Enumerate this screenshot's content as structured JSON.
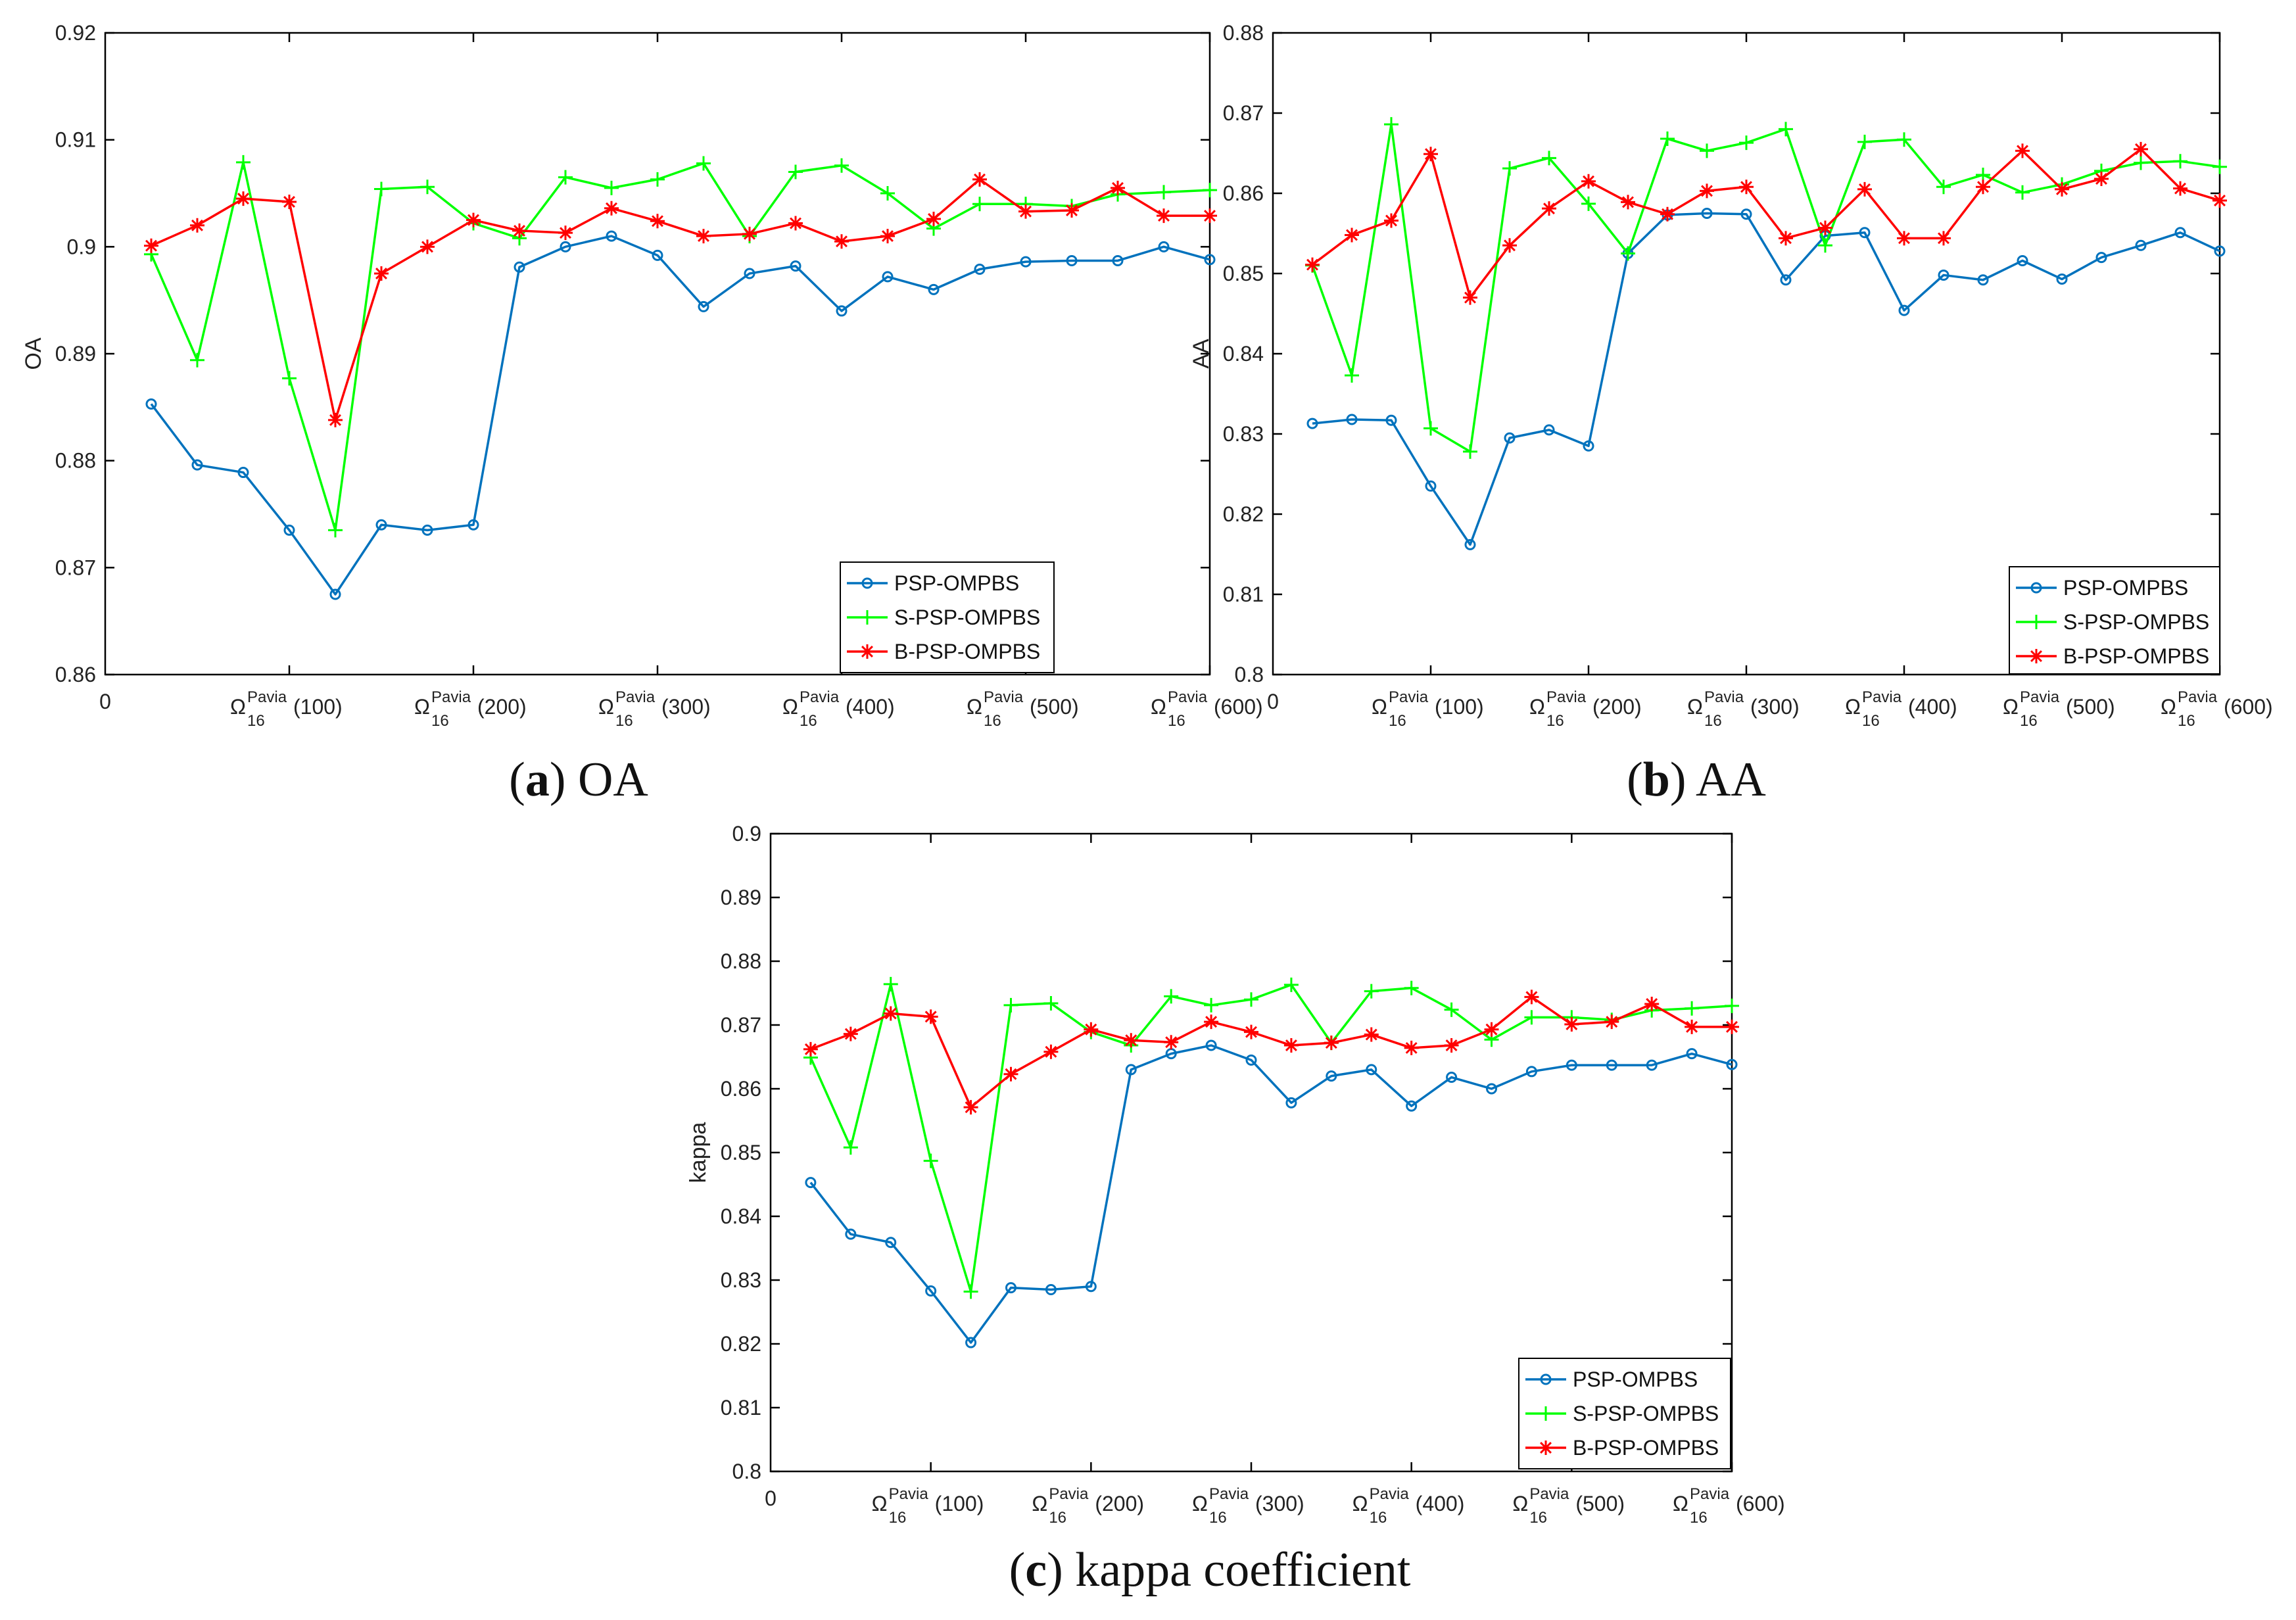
{
  "chart_data": [
    {
      "type": "line",
      "id": "oa",
      "caption_letter": "a",
      "caption_text": "OA",
      "ylabel": "OA",
      "xlim": [
        0,
        600
      ],
      "ylim": [
        0.86,
        0.92
      ],
      "yticks": [
        "0.86",
        "0.87",
        "0.88",
        "0.89",
        "0.9",
        "0.91",
        "0.92"
      ],
      "ytick_values": [
        0.86,
        0.87,
        0.88,
        0.89,
        0.9,
        0.91,
        0.92
      ],
      "x_zero_label": "0",
      "xticks": [
        {
          "value": 100,
          "base": "Ω",
          "sub": "16",
          "sup": "Pavia",
          "arg": "(100)"
        },
        {
          "value": 200,
          "base": "Ω",
          "sub": "16",
          "sup": "Pavia",
          "arg": "(200)"
        },
        {
          "value": 300,
          "base": "Ω",
          "sub": "16",
          "sup": "Pavia",
          "arg": "(300)"
        },
        {
          "value": 400,
          "base": "Ω",
          "sub": "16",
          "sup": "Pavia",
          "arg": "(400)"
        },
        {
          "value": 500,
          "base": "Ω",
          "sub": "16",
          "sup": "Pavia",
          "arg": "(500)"
        },
        {
          "value": 600,
          "base": "Ω",
          "sub": "16",
          "sup": "Pavia",
          "arg": "(600)"
        }
      ],
      "x": [
        25,
        50,
        75,
        100,
        125,
        150,
        175,
        200,
        225,
        250,
        275,
        300,
        325,
        350,
        375,
        400,
        425,
        450,
        475,
        500,
        525,
        550,
        575,
        600
      ],
      "series": [
        {
          "name": "PSP-OMPBS",
          "color": "#0072BD",
          "marker": "circle",
          "values": [
            0.8853,
            0.8796,
            0.8789,
            0.8735,
            0.8675,
            0.874,
            0.8735,
            0.874,
            0.8981,
            0.9,
            0.901,
            0.8992,
            0.8944,
            0.8975,
            0.8982,
            0.894,
            0.8972,
            0.896,
            0.8979,
            0.8986,
            0.8987,
            0.8987,
            0.9,
            0.8988
          ]
        },
        {
          "name": "S-PSP-OMPBS",
          "color": "#00FF00",
          "marker": "plus",
          "values": [
            0.8993,
            0.8894,
            0.9079,
            0.8877,
            0.8735,
            0.9054,
            0.9056,
            0.9022,
            0.9008,
            0.9065,
            0.9055,
            0.9063,
            0.9078,
            0.901,
            0.907,
            0.9076,
            0.905,
            0.9017,
            0.904,
            0.904,
            0.9038,
            0.9049,
            0.9051,
            0.9053
          ]
        },
        {
          "name": "B-PSP-OMPBS",
          "color": "#FF0000",
          "marker": "star",
          "values": [
            0.9001,
            0.902,
            0.9045,
            0.9042,
            0.8838,
            0.8975,
            0.9,
            0.9025,
            0.9015,
            0.9013,
            0.9036,
            0.9024,
            0.901,
            0.9012,
            0.9022,
            0.9005,
            0.901,
            0.9026,
            0.9063,
            0.9033,
            0.9034,
            0.9055,
            0.9029,
            0.9029
          ]
        }
      ]
    },
    {
      "type": "line",
      "id": "aa",
      "caption_letter": "b",
      "caption_text": "AA",
      "ylabel": "AA",
      "xlim": [
        0,
        600
      ],
      "ylim": [
        0.8,
        0.88
      ],
      "yticks": [
        "0.8",
        "0.81",
        "0.82",
        "0.83",
        "0.84",
        "0.85",
        "0.86",
        "0.87",
        "0.88"
      ],
      "ytick_values": [
        0.8,
        0.81,
        0.82,
        0.83,
        0.84,
        0.85,
        0.86,
        0.87,
        0.88
      ],
      "x_zero_label": "0",
      "xticks": [
        {
          "value": 100,
          "base": "Ω",
          "sub": "16",
          "sup": "Pavia",
          "arg": "(100)"
        },
        {
          "value": 200,
          "base": "Ω",
          "sub": "16",
          "sup": "Pavia",
          "arg": "(200)"
        },
        {
          "value": 300,
          "base": "Ω",
          "sub": "16",
          "sup": "Pavia",
          "arg": "(300)"
        },
        {
          "value": 400,
          "base": "Ω",
          "sub": "16",
          "sup": "Pavia",
          "arg": "(400)"
        },
        {
          "value": 500,
          "base": "Ω",
          "sub": "16",
          "sup": "Pavia",
          "arg": "(500)"
        },
        {
          "value": 600,
          "base": "Ω",
          "sub": "16",
          "sup": "Pavia",
          "arg": "(600)"
        }
      ],
      "x": [
        25,
        50,
        75,
        100,
        125,
        150,
        175,
        200,
        225,
        250,
        275,
        300,
        325,
        350,
        375,
        400,
        425,
        450,
        475,
        500,
        525,
        550,
        575,
        600
      ],
      "series": [
        {
          "name": "PSP-OMPBS",
          "color": "#0072BD",
          "marker": "circle",
          "values": [
            0.8313,
            0.8318,
            0.8317,
            0.8235,
            0.8162,
            0.8295,
            0.8305,
            0.8285,
            0.8525,
            0.8573,
            0.8575,
            0.8574,
            0.8492,
            0.8547,
            0.8551,
            0.8454,
            0.8498,
            0.8492,
            0.8516,
            0.8493,
            0.852,
            0.8535,
            0.8551,
            0.8528
          ]
        },
        {
          "name": "S-PSP-OMPBS",
          "color": "#00FF00",
          "marker": "plus",
          "values": [
            0.851,
            0.8373,
            0.8686,
            0.8307,
            0.8278,
            0.8631,
            0.8644,
            0.8587,
            0.8525,
            0.8668,
            0.8653,
            0.8663,
            0.868,
            0.8535,
            0.8664,
            0.8667,
            0.8608,
            0.8623,
            0.8601,
            0.8611,
            0.8628,
            0.8638,
            0.864,
            0.8633
          ]
        },
        {
          "name": "B-PSP-OMPBS",
          "color": "#FF0000",
          "marker": "star",
          "values": [
            0.8511,
            0.8548,
            0.8566,
            0.8649,
            0.847,
            0.8535,
            0.8581,
            0.8615,
            0.8589,
            0.8574,
            0.8603,
            0.8608,
            0.8544,
            0.8557,
            0.8605,
            0.8544,
            0.8544,
            0.8608,
            0.8653,
            0.8605,
            0.8618,
            0.8655,
            0.8606,
            0.8591
          ]
        }
      ]
    },
    {
      "type": "line",
      "id": "kappa",
      "caption_letter": "c",
      "caption_text": "kappa coefficient",
      "ylabel": "kappa",
      "xlim": [
        0,
        600
      ],
      "ylim": [
        0.8,
        0.9
      ],
      "yticks": [
        "0.8",
        "0.81",
        "0.82",
        "0.83",
        "0.84",
        "0.85",
        "0.86",
        "0.87",
        "0.88",
        "0.89",
        "0.9"
      ],
      "ytick_values": [
        0.8,
        0.81,
        0.82,
        0.83,
        0.84,
        0.85,
        0.86,
        0.87,
        0.88,
        0.89,
        0.9
      ],
      "x_zero_label": "0",
      "xticks": [
        {
          "value": 100,
          "base": "Ω",
          "sub": "16",
          "sup": "Pavia",
          "arg": "(100)"
        },
        {
          "value": 200,
          "base": "Ω",
          "sub": "16",
          "sup": "Pavia",
          "arg": "(200)"
        },
        {
          "value": 300,
          "base": "Ω",
          "sub": "16",
          "sup": "Pavia",
          "arg": "(300)"
        },
        {
          "value": 400,
          "base": "Ω",
          "sub": "16",
          "sup": "Pavia",
          "arg": "(400)"
        },
        {
          "value": 500,
          "base": "Ω",
          "sub": "16",
          "sup": "Pavia",
          "arg": "(500)"
        },
        {
          "value": 600,
          "base": "Ω",
          "sub": "16",
          "sup": "Pavia",
          "arg": "(600)"
        }
      ],
      "x": [
        25,
        50,
        75,
        100,
        125,
        150,
        175,
        200,
        225,
        250,
        275,
        300,
        325,
        350,
        375,
        400,
        425,
        450,
        475,
        500,
        525,
        550,
        575,
        600
      ],
      "series": [
        {
          "name": "PSP-OMPBS",
          "color": "#0072BD",
          "marker": "circle",
          "values": [
            0.8453,
            0.8372,
            0.8359,
            0.8283,
            0.8202,
            0.8288,
            0.8285,
            0.829,
            0.863,
            0.8655,
            0.8668,
            0.8645,
            0.8578,
            0.862,
            0.863,
            0.8573,
            0.8618,
            0.86,
            0.8627,
            0.8637,
            0.8637,
            0.8637,
            0.8655,
            0.8638
          ]
        },
        {
          "name": "S-PSP-OMPBS",
          "color": "#00FF00",
          "marker": "plus",
          "values": [
            0.8649,
            0.8508,
            0.8764,
            0.8487,
            0.8282,
            0.8731,
            0.8734,
            0.8689,
            0.8668,
            0.8745,
            0.8731,
            0.874,
            0.8763,
            0.8672,
            0.8753,
            0.8758,
            0.8724,
            0.8677,
            0.8712,
            0.8712,
            0.8708,
            0.8723,
            0.8726,
            0.873
          ]
        },
        {
          "name": "B-PSP-OMPBS",
          "color": "#FF0000",
          "marker": "star",
          "values": [
            0.8662,
            0.8686,
            0.8718,
            0.8713,
            0.8571,
            0.8623,
            0.8658,
            0.8693,
            0.8676,
            0.8673,
            0.8705,
            0.8689,
            0.8668,
            0.8672,
            0.8685,
            0.8664,
            0.8668,
            0.8693,
            0.8744,
            0.8701,
            0.8705,
            0.8733,
            0.8697,
            0.8697
          ]
        }
      ]
    }
  ]
}
